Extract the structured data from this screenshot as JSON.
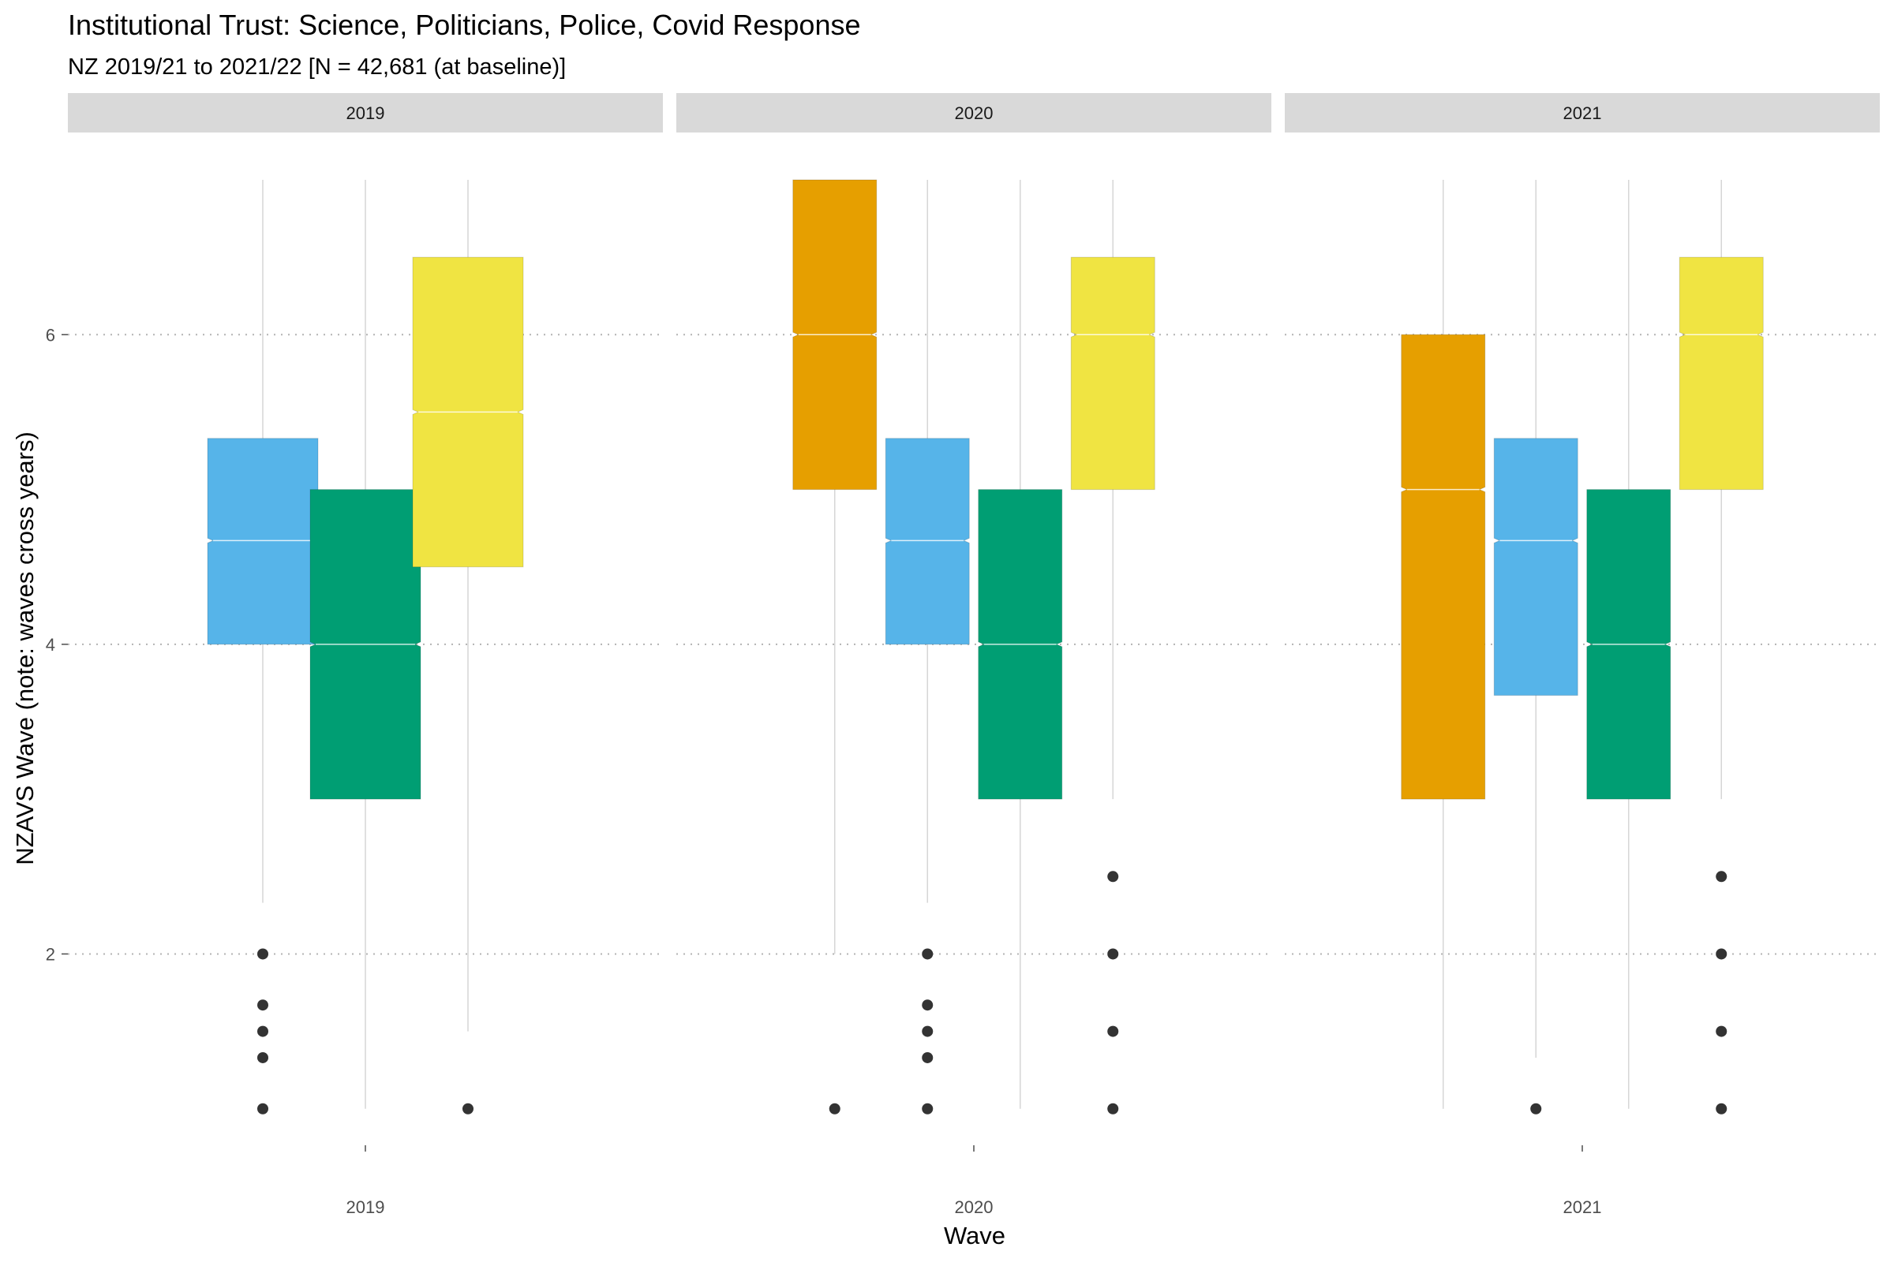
{
  "chart_data": {
    "type": "boxplot",
    "title": "Institutional Trust: Science, Politicians, Police, Covid Response",
    "subtitle": "NZ 2019/21 to 2021/22 [N = 42,681 (at baseline)]",
    "xlabel": "Wave",
    "ylabel": "NZAVS Wave (note: waves cross years)",
    "y_ticks": [
      2,
      4,
      6
    ],
    "ylim": [
      0.8,
      7.0
    ],
    "notched": true,
    "grid": {
      "major_y": "dotted",
      "vertical_lines": true
    },
    "legend": "none",
    "colors": [
      "#E69F00",
      "#56B4E9",
      "#009E73",
      "#F0E442"
    ],
    "facets": [
      {
        "label": "2019",
        "x_label": "2019",
        "boxes": [
          {
            "series": 1,
            "color": "#56B4E9",
            "whisker_low": 2.33,
            "q1": 4.0,
            "median": 4.67,
            "q3": 5.33,
            "whisker_high": 7.0,
            "outliers": [
              2.0,
              1.67,
              1.5,
              1.33,
              1.0
            ]
          },
          {
            "series": 2,
            "color": "#009E73",
            "whisker_low": 1.0,
            "q1": 3.0,
            "median": 4.0,
            "q3": 5.0,
            "whisker_high": 7.0,
            "outliers": []
          },
          {
            "series": 3,
            "color": "#F0E442",
            "whisker_low": 1.5,
            "q1": 4.5,
            "median": 5.5,
            "q3": 6.5,
            "whisker_high": 7.0,
            "outliers": [
              1.0
            ]
          }
        ]
      },
      {
        "label": "2020",
        "x_label": "2020",
        "boxes": [
          {
            "series": 0,
            "color": "#E69F00",
            "whisker_low": 2.0,
            "q1": 5.0,
            "median": 6.0,
            "q3": 7.0,
            "whisker_high": 7.0,
            "outliers": [
              1.0
            ]
          },
          {
            "series": 1,
            "color": "#56B4E9",
            "whisker_low": 2.33,
            "q1": 4.0,
            "median": 4.67,
            "q3": 5.33,
            "whisker_high": 7.0,
            "outliers": [
              2.0,
              1.67,
              1.5,
              1.33,
              1.0
            ]
          },
          {
            "series": 2,
            "color": "#009E73",
            "whisker_low": 1.0,
            "q1": 3.0,
            "median": 4.0,
            "q3": 5.0,
            "whisker_high": 7.0,
            "outliers": []
          },
          {
            "series": 3,
            "color": "#F0E442",
            "whisker_low": 3.0,
            "q1": 5.0,
            "median": 6.0,
            "q3": 6.5,
            "whisker_high": 7.0,
            "outliers": [
              2.5,
              2.0,
              1.5,
              1.0
            ]
          }
        ]
      },
      {
        "label": "2021",
        "x_label": "2021",
        "boxes": [
          {
            "series": 0,
            "color": "#E69F00",
            "whisker_low": 1.0,
            "q1": 3.0,
            "median": 5.0,
            "q3": 6.0,
            "whisker_high": 7.0,
            "outliers": []
          },
          {
            "series": 1,
            "color": "#56B4E9",
            "whisker_low": 1.33,
            "q1": 3.67,
            "median": 4.67,
            "q3": 5.33,
            "whisker_high": 7.0,
            "outliers": [
              1.0
            ]
          },
          {
            "series": 2,
            "color": "#009E73",
            "whisker_low": 1.0,
            "q1": 3.0,
            "median": 4.0,
            "q3": 5.0,
            "whisker_high": 7.0,
            "outliers": []
          },
          {
            "series": 3,
            "color": "#F0E442",
            "whisker_low": 3.0,
            "q1": 5.0,
            "median": 6.0,
            "q3": 6.5,
            "whisker_high": 7.0,
            "outliers": [
              2.5,
              2.0,
              1.5,
              1.0
            ]
          }
        ]
      }
    ]
  }
}
